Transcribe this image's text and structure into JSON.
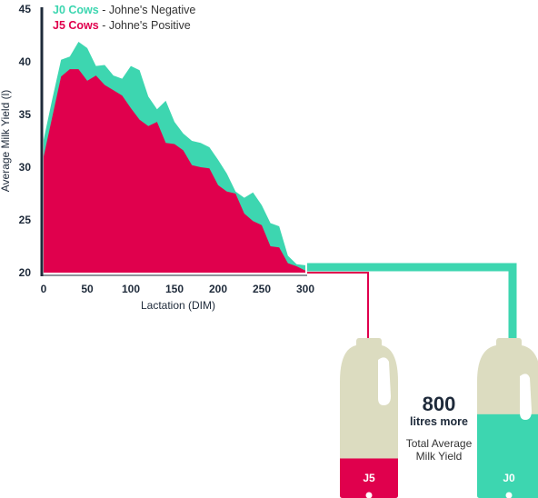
{
  "colors": {
    "j0": "#3dd6b0",
    "j5": "#e0004d",
    "bottle_empty": "#dcdcc0",
    "axis": "#1e2a3a",
    "background": "#ffffff"
  },
  "legend": {
    "j0_name": "J0 Cows",
    "j0_desc": " - Johne's Negative",
    "j5_name": "J5 Cows",
    "j5_desc": " - Johne's Positive"
  },
  "summary": {
    "number": "800",
    "unit": "litres more",
    "caption_line1": "Total Average",
    "caption_line2": "Milk Yield"
  },
  "bottles": {
    "j5_label": "J5",
    "j0_label": "J0",
    "j5_fill": 0.34,
    "j0_fill": 0.72
  },
  "chart_data": {
    "type": "area",
    "xlabel": "Lactation (DIM)",
    "ylabel": "Average Milk Yield (l)",
    "xlim": [
      0,
      300
    ],
    "ylim": [
      20,
      45
    ],
    "x_ticks": [
      "0",
      "50",
      "100",
      "150",
      "200",
      "250",
      "300"
    ],
    "y_ticks": [
      "20",
      "25",
      "30",
      "35",
      "40",
      "45"
    ],
    "legend_position": "top-left",
    "grid": false,
    "x": [
      0,
      10,
      20,
      30,
      40,
      50,
      60,
      70,
      80,
      90,
      100,
      110,
      120,
      130,
      140,
      150,
      160,
      170,
      180,
      190,
      200,
      210,
      220,
      230,
      240,
      250,
      260,
      270,
      280,
      290,
      300
    ],
    "series": [
      {
        "name": "J0 Cows",
        "values": [
          32.6,
          36.5,
          40.2,
          40.5,
          41.9,
          41.3,
          39.6,
          39.7,
          38.7,
          38.4,
          39.6,
          39.2,
          36.7,
          35.5,
          36.3,
          34.3,
          33.2,
          32.5,
          32.3,
          31.9,
          30.7,
          29.4,
          27.7,
          27.1,
          27.6,
          26.4,
          24.7,
          24.4,
          21.6,
          20.8,
          20.7
        ]
      },
      {
        "name": "J5 Cows",
        "values": [
          31.0,
          34.8,
          38.6,
          39.3,
          39.3,
          38.2,
          38.7,
          37.8,
          37.3,
          36.8,
          35.6,
          34.5,
          33.9,
          34.3,
          32.3,
          32.2,
          31.6,
          30.2,
          30.0,
          29.9,
          28.3,
          27.7,
          27.5,
          25.6,
          24.9,
          24.5,
          22.5,
          22.4,
          20.9,
          20.6,
          20.2
        ]
      }
    ]
  }
}
